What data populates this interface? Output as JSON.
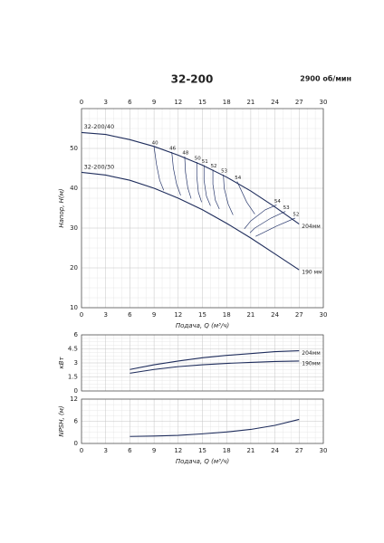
{
  "chart_data": [
    {
      "type": "line",
      "title": "32-200",
      "subtitle": "2900 об/мин",
      "ylabel": "Напор, H(м)",
      "xlabel": "Подача, Q (м³/ч)",
      "xlim": [
        0,
        30
      ],
      "xticks": [
        0,
        3,
        6,
        9,
        12,
        15,
        18,
        21,
        24,
        27,
        30
      ],
      "xtick_labels": [
        "top",
        "bottom"
      ],
      "ylim": [
        10,
        60
      ],
      "yticks": [
        10,
        20,
        30,
        40,
        50
      ],
      "grid": true,
      "series": [
        {
          "name": "204мм",
          "color": "#1f2d5c",
          "x": [
            0,
            3,
            6,
            9,
            12,
            15,
            18,
            21,
            24,
            27
          ],
          "values": [
            54,
            53.5,
            52.2,
            50.5,
            48.3,
            45.8,
            42.8,
            39.3,
            35.3,
            31
          ]
        },
        {
          "name": "190 мм",
          "color": "#1f2d5c",
          "x": [
            0,
            3,
            6,
            9,
            12,
            15,
            18,
            21,
            24,
            27
          ],
          "values": [
            44,
            43.3,
            42,
            40,
            37.5,
            34.6,
            31.2,
            27.5,
            23.5,
            19.5
          ]
        }
      ],
      "annotations": [
        {
          "text": "32-200/40",
          "x": 0.3,
          "y": 55.5
        },
        {
          "text": "32-200/30",
          "x": 0.3,
          "y": 45.3
        }
      ],
      "contours": [
        {
          "label": "40",
          "x": [
            9,
            9.3,
            9.7,
            10.2
          ],
          "values": [
            50.5,
            46,
            42,
            39.5
          ]
        },
        {
          "label": "46",
          "x": [
            11.2,
            11.4,
            11.8,
            12.3
          ],
          "values": [
            49.1,
            45,
            41,
            38.2
          ]
        },
        {
          "label": "48",
          "x": [
            12.8,
            12.9,
            13.2,
            13.6
          ],
          "values": [
            48,
            44,
            40,
            37.4
          ]
        },
        {
          "label": "50",
          "x": [
            14.3,
            14.3,
            14.5,
            14.9
          ],
          "values": [
            46.6,
            43,
            39,
            36.5
          ]
        },
        {
          "label": "51",
          "x": [
            15.2,
            15.2,
            15.5,
            16
          ],
          "values": [
            45.8,
            42,
            38,
            35.6
          ]
        },
        {
          "label": "52",
          "x": [
            16.3,
            16.3,
            16.6,
            17.1
          ],
          "values": [
            44.7,
            41,
            37,
            34.8
          ]
        },
        {
          "label": "53",
          "x": [
            17.6,
            17.7,
            18.2,
            18.8
          ],
          "values": [
            43.4,
            40,
            36,
            33.3
          ]
        },
        {
          "label": "54",
          "x": [
            19.3,
            20.5,
            21.5
          ],
          "values": [
            41.7,
            36.5,
            33.5
          ]
        },
        {
          "label": "54",
          "x": [
            24.2,
            22.8,
            21,
            20.2
          ],
          "values": [
            35.8,
            34.6,
            31.8,
            29.8
          ]
        },
        {
          "label": "53",
          "x": [
            25.3,
            23.5,
            21.5,
            20.9
          ],
          "values": [
            34.2,
            32.5,
            30,
            28.8
          ]
        },
        {
          "label": "52",
          "x": [
            26.5,
            24.2,
            22.5,
            21.6
          ],
          "values": [
            32.5,
            30.5,
            28.8,
            27.9
          ]
        }
      ]
    },
    {
      "type": "line",
      "ylabel": "кВт",
      "xlim": [
        0,
        30
      ],
      "xticks": [
        0,
        3,
        6,
        9,
        12,
        15,
        18,
        21,
        24,
        27,
        30
      ],
      "xtick_labels": [],
      "ylim": [
        0,
        6
      ],
      "yticks": [
        0,
        1.5,
        3,
        4.5,
        6
      ],
      "grid": true,
      "series": [
        {
          "name": "204мм",
          "color": "#1f2d5c",
          "x": [
            6,
            9,
            12,
            15,
            18,
            21,
            24,
            27
          ],
          "values": [
            2.3,
            2.8,
            3.2,
            3.55,
            3.8,
            4.0,
            4.2,
            4.3
          ]
        },
        {
          "name": "190мм",
          "color": "#1f2d5c",
          "x": [
            6,
            9,
            12,
            15,
            18,
            21,
            24,
            27
          ],
          "values": [
            1.9,
            2.3,
            2.6,
            2.8,
            2.95,
            3.05,
            3.15,
            3.2
          ]
        }
      ]
    },
    {
      "type": "line",
      "ylabel": "NPSH, (м)",
      "xlabel": "Подача, Q (м³/ч)",
      "xlim": [
        0,
        30
      ],
      "xticks": [
        0,
        3,
        6,
        9,
        12,
        15,
        18,
        21,
        24,
        27,
        30
      ],
      "xtick_labels": [
        "bottom"
      ],
      "ylim": [
        0,
        12
      ],
      "yticks": [
        0,
        6,
        12
      ],
      "grid": true,
      "series": [
        {
          "color": "#1f2d5c",
          "x": [
            6,
            9,
            12,
            15,
            18,
            21,
            24,
            27
          ],
          "values": [
            1.9,
            2.0,
            2.2,
            2.6,
            3.1,
            3.8,
            4.9,
            6.5
          ]
        }
      ]
    }
  ]
}
